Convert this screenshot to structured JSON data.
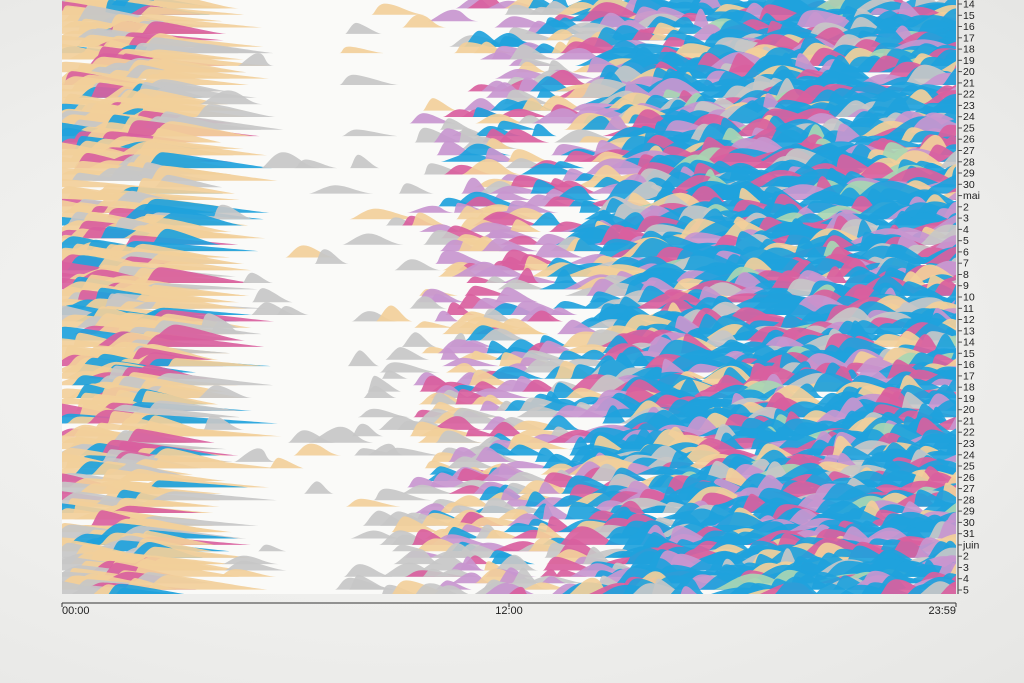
{
  "chart_data": {
    "type": "area",
    "title": "",
    "xlabel": "",
    "ylabel": "",
    "x_ticks": [
      "00:00",
      "12:00",
      "23:59"
    ],
    "x_range": [
      "00:00",
      "23:59"
    ],
    "y_ticks": [
      "14",
      "15",
      "16",
      "17",
      "18",
      "19",
      "20",
      "21",
      "22",
      "23",
      "24",
      "25",
      "26",
      "27",
      "28",
      "29",
      "30",
      "mai",
      "2",
      "3",
      "4",
      "5",
      "6",
      "7",
      "8",
      "9",
      "10",
      "11",
      "12",
      "13",
      "14",
      "15",
      "16",
      "17",
      "18",
      "19",
      "20",
      "21",
      "22",
      "23",
      "24",
      "25",
      "26",
      "27",
      "28",
      "29",
      "30",
      "31",
      "juin",
      "2",
      "3",
      "4",
      "5"
    ],
    "colors": {
      "blue": "#1fa2dc",
      "pink": "#d9609e",
      "lilac": "#c896cf",
      "peach": "#f2cf9a",
      "grey": "#c7c7c7",
      "green": "#a8d6b3"
    },
    "grid": false,
    "legend": "none"
  }
}
